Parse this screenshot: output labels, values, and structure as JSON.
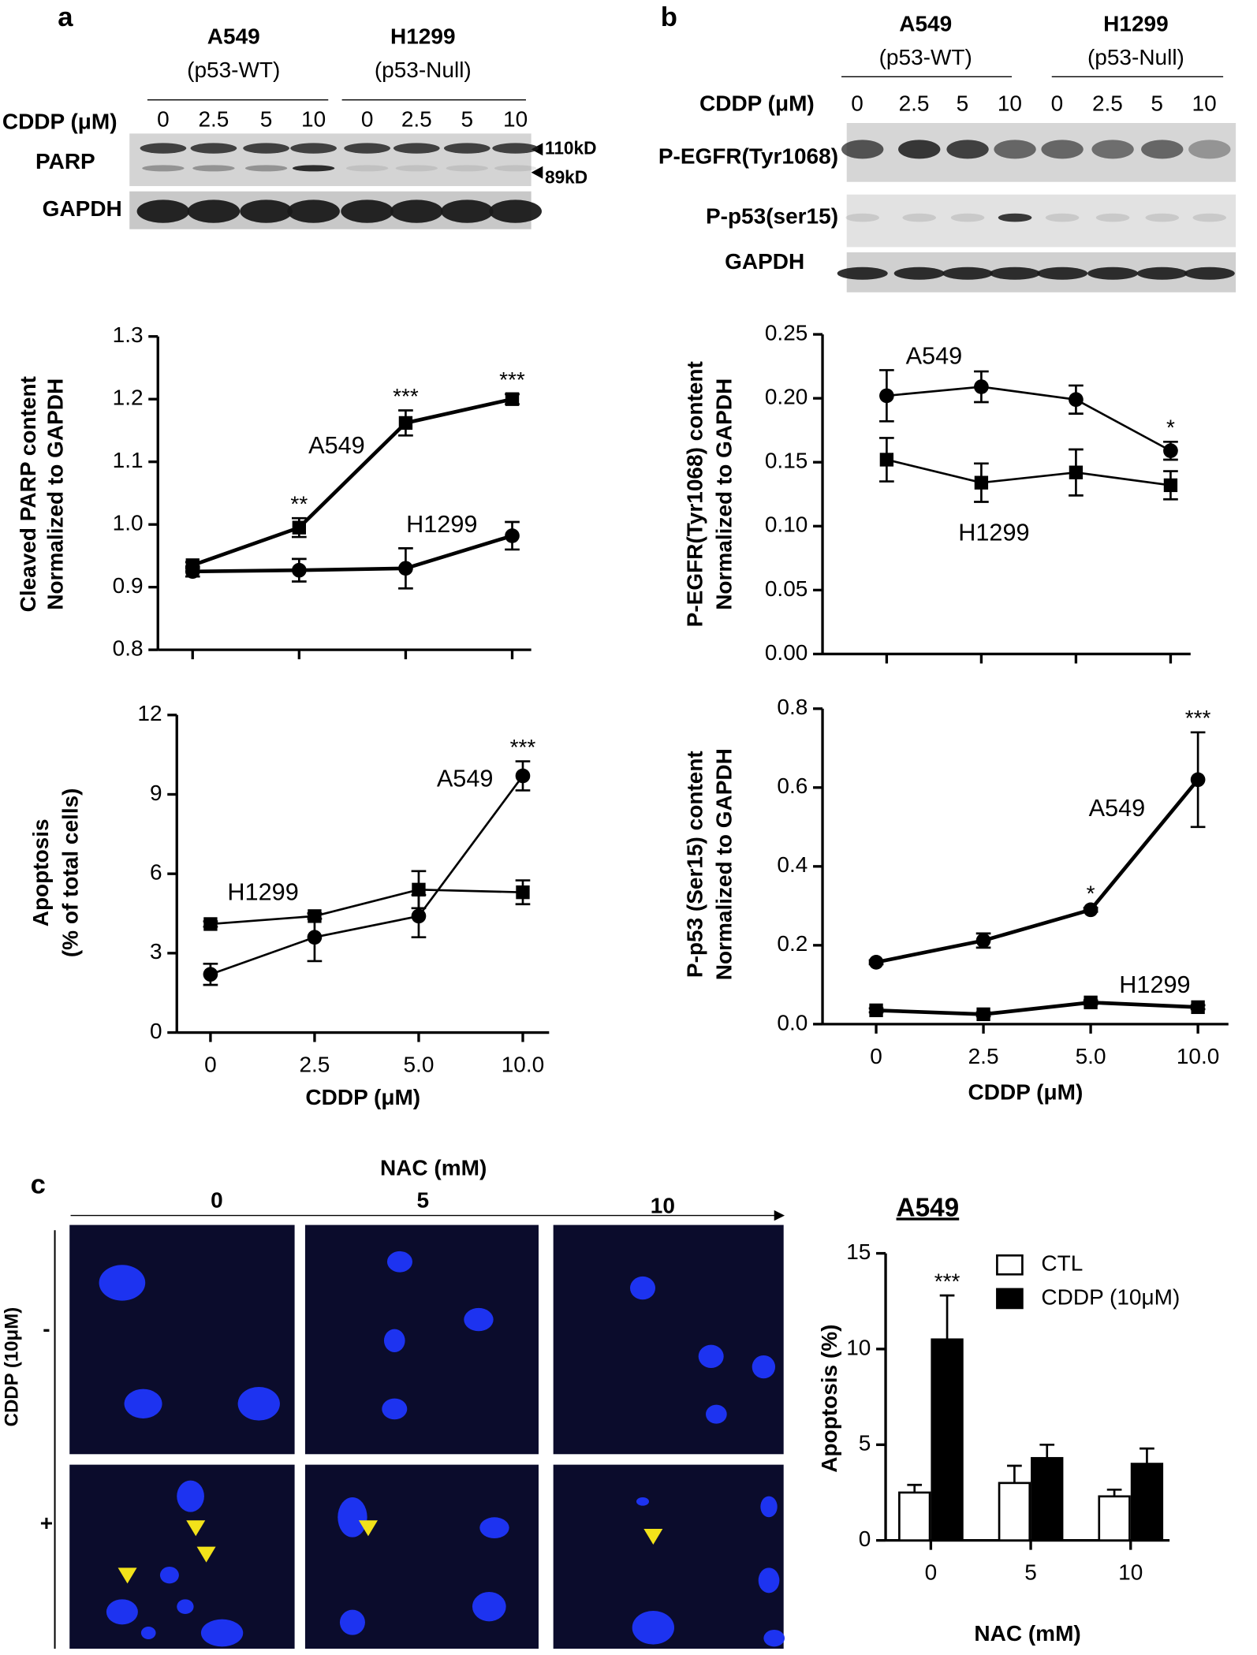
{
  "chart_data": [
    {
      "type": "line",
      "categories": [
        null,
        null,
        null,
        null
      ],
      "ylabel": [
        "Cleaved PARP content",
        "Normalized to GAPDH"
      ],
      "ylim": [
        0.8,
        1.3
      ],
      "yticks": [
        0.8,
        0.9,
        {
          "value": 1,
          "label": "1.0"
        },
        1.1,
        1.2,
        1.3
      ],
      "series": [
        {
          "name": "A549",
          "marker": "square",
          "color": "#000000",
          "values": [
            0.935,
            0.995,
            1.162,
            1.2
          ],
          "errors": [
            0.005,
            0.015,
            0.02,
            0.008
          ],
          "significance": [
            null,
            "**",
            "***",
            "***"
          ]
        },
        {
          "name": "H1299",
          "marker": "circle",
          "color": "#000000",
          "values": [
            0.925,
            0.927,
            0.93,
            0.982
          ],
          "errors": [
            0.008,
            0.018,
            0.032,
            0.022
          ],
          "significance": [
            null,
            null,
            null,
            null
          ]
        }
      ]
    },
    {
      "type": "line",
      "categories": [
        "0",
        "2.5",
        "5.0",
        "10.0"
      ],
      "xlabel": "CDDP (μM)",
      "ylabel": [
        "Apoptosis",
        "(% of total cells)"
      ],
      "ylim": [
        0,
        12
      ],
      "yticks": [
        0,
        3,
        6,
        9,
        12
      ],
      "series": [
        {
          "name": "A549",
          "marker": "circle",
          "color": "#000000",
          "values": [
            2.2,
            3.6,
            4.4,
            9.7
          ],
          "errors": [
            0.4,
            0.9,
            0.8,
            0.55
          ],
          "significance": [
            null,
            null,
            null,
            "***"
          ]
        },
        {
          "name": "H1299",
          "marker": "square",
          "color": "#000000",
          "values": [
            4.1,
            4.4,
            5.4,
            5.3
          ],
          "errors": [
            0.1,
            0.1,
            0.7,
            0.45
          ],
          "significance": [
            null,
            null,
            null,
            null
          ]
        }
      ]
    },
    {
      "type": "line",
      "categories": [
        null,
        null,
        null,
        null
      ],
      "ylabel": [
        "P-EGFR(Tyr1068) content",
        "Normalized to GAPDH"
      ],
      "ylim": [
        0,
        0.25
      ],
      "yticks": [
        {
          "value": 0,
          "label": "0.00"
        },
        0.05,
        {
          "value": 0.1,
          "label": "0.10"
        },
        0.15,
        {
          "value": 0.2,
          "label": "0.20"
        },
        0.25
      ],
      "series": [
        {
          "name": "A549",
          "marker": "circle",
          "color": "#000000",
          "values": [
            0.202,
            0.209,
            0.199,
            0.159
          ],
          "errors": [
            0.02,
            0.012,
            0.011,
            0.007
          ],
          "significance": [
            null,
            null,
            null,
            "*"
          ]
        },
        {
          "name": "H1299",
          "marker": "square",
          "color": "#000000",
          "values": [
            0.152,
            0.134,
            0.142,
            0.132
          ],
          "errors": [
            0.017,
            0.015,
            0.018,
            0.011
          ],
          "significance": [
            null,
            null,
            null,
            null
          ]
        }
      ]
    },
    {
      "type": "line",
      "categories": [
        "0",
        "2.5",
        "5.0",
        "10.0"
      ],
      "xlabel": "CDDP (μM)",
      "ylabel": [
        "P-p53 (Ser15) content",
        "Normalized to GAPDH"
      ],
      "ylim": [
        0,
        0.8
      ],
      "yticks": [
        {
          "value": 0,
          "label": "0.0"
        },
        0.2,
        0.4,
        0.6,
        0.8
      ],
      "series": [
        {
          "name": "A549",
          "marker": "circle",
          "color": "#000000",
          "values": [
            0.157,
            0.212,
            0.29,
            0.62
          ],
          "errors": [
            0.005,
            0.018,
            0.005,
            0.12
          ],
          "significance": [
            null,
            null,
            "*",
            "***"
          ]
        },
        {
          "name": "H1299",
          "marker": "square",
          "color": "#000000",
          "values": [
            0.035,
            0.025,
            0.055,
            0.043
          ],
          "errors": [
            0.005,
            0.005,
            0.005,
            0.005
          ],
          "significance": [
            null,
            null,
            null,
            null
          ]
        }
      ]
    },
    {
      "type": "bar",
      "title": "A549",
      "categories": [
        "0",
        "5",
        "10"
      ],
      "xlabel": "NAC (mM)",
      "ylabel": [
        "Apoptosis (%)"
      ],
      "ylim": [
        0,
        15
      ],
      "yticks": [
        0,
        5,
        10,
        15
      ],
      "series": [
        {
          "name": "CTL",
          "color": "#ffffff",
          "values": [
            2.5,
            3.0,
            2.3
          ],
          "errors": [
            0.4,
            0.9,
            0.35
          ],
          "significance": [
            null,
            null,
            null
          ]
        },
        {
          "name": "CDDP (10μM)",
          "color": "#000000",
          "values": [
            10.5,
            4.3,
            4.0
          ],
          "errors": [
            2.3,
            0.7,
            0.8
          ],
          "significance": [
            "***",
            null,
            null
          ]
        }
      ]
    }
  ],
  "blots": {
    "a": {
      "panel": "a",
      "group1": "A549",
      "group1_sub": "(p53-WT)",
      "group2": "H1299",
      "group2_sub": "(p53-Null)",
      "treatment": "CDDP (μM)",
      "lanes": [
        "0",
        "2.5",
        "5",
        "10",
        "0",
        "2.5",
        "5",
        "10"
      ],
      "rows": [
        "PARP",
        "GAPDH"
      ],
      "markers": [
        "110kD",
        "89kD"
      ]
    },
    "b": {
      "panel": "b",
      "group1": "A549",
      "group1_sub": "(p53-WT)",
      "group2": "H1299",
      "group2_sub": "(p53-Null)",
      "treatment": "CDDP (μM)",
      "lanes": [
        "0",
        "2.5",
        "5",
        "10",
        "0",
        "2.5",
        "5",
        "10"
      ],
      "rows": [
        "P-EGFR(Tyr1068)",
        "P-p53(ser15)",
        "GAPDH"
      ]
    }
  },
  "images": {
    "panel": "c",
    "column_title": "NAC (mM)",
    "columns": [
      "0",
      "5",
      "10"
    ],
    "row_title": "CDDP (10μM)",
    "rows": [
      "-",
      "+"
    ]
  }
}
